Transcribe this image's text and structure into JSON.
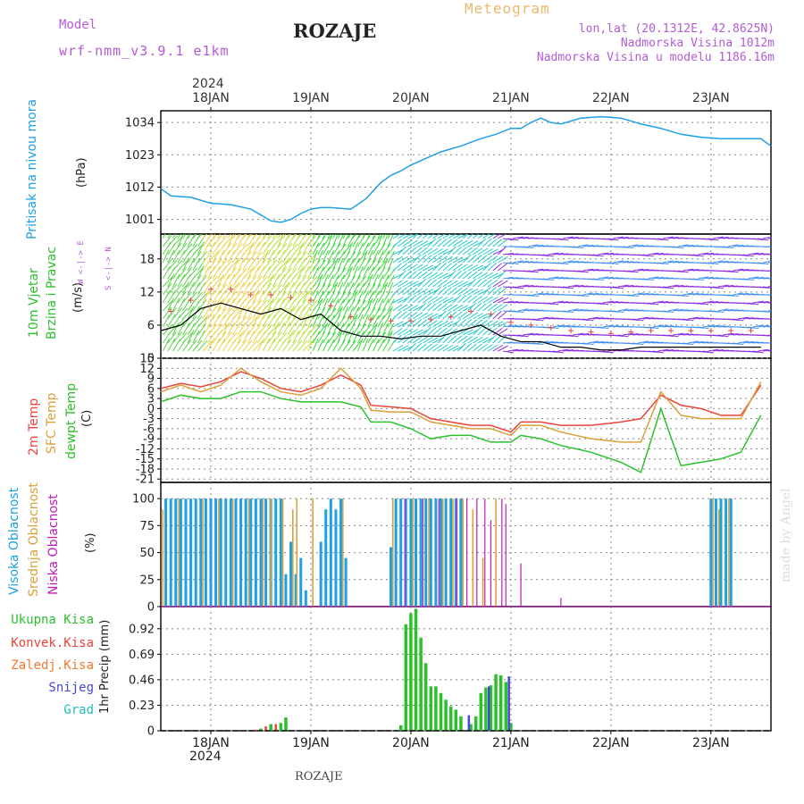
{
  "header": {
    "title": "ROZAJE",
    "meteogram": "Meteogram",
    "model_label": "Model",
    "model_name": "wrf-nmm_v3.9.1 e1km",
    "coords": "lon,lat (20.1312E, 42.8625N)",
    "elevation": "Nadmorska Visina 1012m",
    "model_elevation": "Nadmorska Visina u modelu 1186.16m"
  },
  "footer": {
    "station": "ROZAJE",
    "watermark": "made by Angel"
  },
  "colors": {
    "pressure": "#1ea0e6",
    "temp": "#e8453c",
    "sfc": "#d9a13a",
    "dew": "#2bc12b",
    "high_cloud": "#1ea0e6",
    "mid_cloud": "#d9a13a",
    "low_cloud": "#c01ab8",
    "precip_total": "#2bc12b",
    "precip_conv": "#e8453c",
    "precip_frz": "#f07830",
    "precip_snow": "#4646dc",
    "precip_grad": "#20c0c0"
  },
  "time_axis": {
    "top_year": "2024",
    "bottom_year": "2024",
    "day_labels": [
      "18JAN",
      "19JAN",
      "20JAN",
      "21JAN",
      "22JAN",
      "23JAN"
    ],
    "day_ticks": [
      0.5,
      1.5,
      2.5,
      3.5,
      4.5,
      5.5
    ],
    "range": [
      0,
      6.1
    ]
  },
  "chart_data": [
    {
      "type": "line",
      "panel": "pressure",
      "ylabel_title": "Pritisak na nivou mora",
      "ylabel_unit": "(hPa)",
      "y_ticks": [
        1001,
        1012,
        1023,
        1034
      ],
      "ylim": [
        996,
        1038
      ],
      "series": [
        {
          "x": [
            0,
            0.1,
            0.3,
            0.5,
            0.7,
            0.9,
            1.0,
            1.1,
            1.2,
            1.3,
            1.4,
            1.5,
            1.6,
            1.7,
            1.9,
            2.05,
            2.2,
            2.3,
            2.4,
            2.5,
            2.6,
            2.8,
            3.0,
            3.2,
            3.35,
            3.5,
            3.6,
            3.7,
            3.8,
            3.9,
            4.0,
            4.2,
            4.4,
            4.6,
            4.8,
            5.0,
            5.2,
            5.4,
            5.6,
            5.8,
            6.0,
            6.1
          ],
          "values": [
            1011.5,
            1009,
            1008.5,
            1006.5,
            1006,
            1004.5,
            1002.5,
            1000.5,
            1000,
            1001,
            1003,
            1004.5,
            1005,
            1005,
            1004.5,
            1008,
            1013.5,
            1016,
            1017.5,
            1019.5,
            1021,
            1024,
            1026,
            1028.5,
            1030,
            1032,
            1032,
            1034,
            1035.5,
            1034,
            1033.5,
            1035.5,
            1036,
            1035.5,
            1033.5,
            1032,
            1030,
            1029,
            1028.5,
            1028.5,
            1028.5,
            1026
          ]
        }
      ]
    },
    {
      "type": "line",
      "panel": "wind",
      "ylabel_title": "10m Vjetar",
      "ylabel_title2": "Brzina i Pravac",
      "ylabel_unit": "(m/s)",
      "compass": "W <-|-> E",
      "compass2": "S <-|-> N",
      "y_ticks": [
        0,
        6,
        12,
        18
      ],
      "ylim": [
        0,
        22.5
      ],
      "series": [
        {
          "name": "speed",
          "x": [
            0,
            0.2,
            0.4,
            0.6,
            0.8,
            1.0,
            1.2,
            1.4,
            1.6,
            1.8,
            2.0,
            2.2,
            2.4,
            2.6,
            2.8,
            3.0,
            3.2,
            3.4,
            3.6,
            3.8,
            4.0,
            4.2,
            4.4,
            4.6,
            4.8,
            5.0,
            5.2,
            5.4,
            5.6,
            5.8,
            6.0
          ],
          "values": [
            5,
            6,
            9,
            10,
            9,
            8,
            9,
            7,
            8,
            5,
            4,
            4,
            3.5,
            4,
            4,
            5,
            6,
            4,
            3,
            3,
            2,
            2,
            1.5,
            1.5,
            2,
            2,
            2,
            2,
            2,
            2,
            2
          ]
        }
      ]
    },
    {
      "type": "line",
      "panel": "temperature",
      "ylabel_title": "2m Temp",
      "ylabel_title2": "SFC Temp",
      "ylabel_title3": "dewpt Temp",
      "ylabel_unit": "(C)",
      "y_ticks": [
        -21,
        -18,
        -15,
        -12,
        -9,
        -6,
        -3,
        0,
        3,
        6,
        9,
        12,
        15
      ],
      "ylim": [
        -22,
        15
      ],
      "series": [
        {
          "name": "2m Temp",
          "x": [
            0,
            0.2,
            0.4,
            0.6,
            0.8,
            1.0,
            1.2,
            1.4,
            1.6,
            1.8,
            2.0,
            2.1,
            2.3,
            2.5,
            2.7,
            2.9,
            3.1,
            3.3,
            3.5,
            3.6,
            3.8,
            4.0,
            4.3,
            4.6,
            4.8,
            5.0,
            5.2,
            5.4,
            5.6,
            5.8,
            6.0
          ],
          "values": [
            6,
            7.5,
            6.5,
            8,
            11,
            9,
            6,
            5,
            7,
            10,
            7,
            1,
            0.5,
            0,
            -3,
            -4,
            -5,
            -5,
            -7,
            -4,
            -4,
            -5,
            -5,
            -4,
            -3,
            4,
            1,
            0,
            -2,
            -2,
            7
          ]
        },
        {
          "name": "SFC Temp",
          "x": [
            0,
            0.2,
            0.4,
            0.6,
            0.8,
            1.0,
            1.2,
            1.4,
            1.6,
            1.8,
            2.0,
            2.1,
            2.3,
            2.5,
            2.7,
            2.9,
            3.1,
            3.3,
            3.5,
            3.6,
            3.8,
            4.0,
            4.3,
            4.6,
            4.8,
            5.0,
            5.2,
            5.4,
            5.6,
            5.8,
            6.0
          ],
          "values": [
            5,
            7,
            5,
            7,
            12,
            8,
            5,
            4,
            6,
            12,
            6,
            -0.5,
            -1,
            -1,
            -4,
            -5,
            -6,
            -6,
            -8,
            -5,
            -5,
            -7,
            -9,
            -10,
            -10,
            5,
            -2,
            -3,
            -3,
            -3,
            8
          ]
        },
        {
          "name": "dewpt Temp",
          "x": [
            0,
            0.2,
            0.4,
            0.6,
            0.8,
            1.0,
            1.2,
            1.4,
            1.6,
            1.8,
            2.0,
            2.1,
            2.3,
            2.5,
            2.7,
            2.9,
            3.1,
            3.3,
            3.5,
            3.6,
            3.8,
            4.0,
            4.3,
            4.6,
            4.8,
            5.0,
            5.2,
            5.4,
            5.6,
            5.8,
            6.0
          ],
          "values": [
            2,
            4,
            3,
            3,
            5,
            5,
            3,
            2,
            2,
            2,
            0.5,
            -4,
            -4,
            -6,
            -9,
            -8,
            -8,
            -10,
            -10,
            -8,
            -9,
            -11,
            -13,
            -16,
            -19,
            0,
            -17,
            -16,
            -15,
            -13,
            -2
          ]
        }
      ]
    },
    {
      "type": "bar",
      "panel": "clouds",
      "ylabel_title": "Visoka Oblacnost",
      "ylabel_title2": "Srednja Oblacnost",
      "ylabel_title3": "Niska Oblacnost",
      "ylabel_unit": "(%)",
      "y_ticks": [
        0,
        25,
        50,
        75,
        100
      ],
      "ylim": [
        0,
        115
      ],
      "series": [
        {
          "name": "Visoka Oblacnost",
          "x": [
            0.05,
            0.1,
            0.15,
            0.2,
            0.25,
            0.3,
            0.35,
            0.4,
            0.45,
            0.5,
            0.55,
            0.6,
            0.65,
            0.7,
            0.75,
            0.8,
            0.85,
            0.9,
            0.95,
            1.0,
            1.05,
            1.1,
            1.15,
            1.2,
            1.25,
            1.3,
            1.35,
            1.4,
            1.45,
            1.6,
            1.65,
            1.7,
            1.75,
            1.8,
            1.85,
            2.3,
            2.35,
            2.4,
            2.45,
            2.5,
            2.55,
            2.6,
            2.65,
            2.7,
            2.75,
            2.8,
            2.85,
            2.9,
            2.95,
            3.0,
            5.5,
            5.55,
            5.6,
            5.65,
            5.7
          ],
          "values": [
            100,
            100,
            100,
            100,
            100,
            100,
            100,
            100,
            100,
            100,
            100,
            100,
            100,
            100,
            100,
            100,
            100,
            100,
            100,
            100,
            100,
            100,
            100,
            100,
            30,
            60,
            30,
            45,
            15,
            60,
            90,
            100,
            90,
            100,
            45,
            55,
            100,
            100,
            100,
            100,
            100,
            100,
            100,
            100,
            100,
            100,
            100,
            100,
            100,
            100,
            100,
            100,
            100,
            100,
            100
          ]
        },
        {
          "name": "Srednja Oblacnost",
          "x": [
            0.02,
            0.18,
            0.42,
            0.58,
            0.72,
            0.88,
            1.02,
            1.1,
            1.22,
            1.32,
            1.36,
            1.52,
            1.82,
            2.32,
            2.52,
            2.68,
            2.82,
            2.92,
            3.02,
            3.12,
            3.22,
            3.35,
            5.52,
            5.58,
            5.68
          ],
          "values": [
            90,
            100,
            100,
            100,
            100,
            100,
            100,
            100,
            100,
            90,
            100,
            100,
            100,
            100,
            100,
            100,
            100,
            100,
            100,
            90,
            45,
            100,
            100,
            90,
            100
          ]
        },
        {
          "name": "Niska Oblacnost",
          "x": [
            2.44,
            2.62,
            2.78,
            2.96,
            3.06,
            3.16,
            3.24,
            3.3,
            3.41,
            3.45,
            3.6,
            4.0
          ],
          "values": [
            100,
            100,
            100,
            100,
            100,
            100,
            100,
            80,
            100,
            95,
            40,
            8
          ]
        }
      ]
    },
    {
      "type": "bar",
      "panel": "precipitation",
      "ylabel_unit": "1hr Precip (mm)",
      "legend": [
        "Ukupna Kisa",
        "Konvek.Kisa",
        "Zaledj.Kisa",
        "Snijeg",
        "Grad"
      ],
      "y_ticks": [
        0,
        0.23,
        0.46,
        0.69,
        0.92
      ],
      "ylim": [
        0,
        1.12
      ],
      "series": [
        {
          "name": "Ukupna Kisa",
          "x": [
            1.0,
            1.1,
            1.2,
            1.25,
            2.4,
            2.45,
            2.5,
            2.55,
            2.6,
            2.65,
            2.7,
            2.75,
            2.8,
            2.85,
            2.9,
            2.95,
            3.0,
            3.1,
            3.15,
            3.2,
            3.25,
            3.3,
            3.35,
            3.4,
            3.45,
            3.5
          ],
          "values": [
            0.02,
            0.06,
            0.07,
            0.12,
            0.05,
            0.96,
            1.06,
            1.1,
            0.84,
            0.61,
            0.4,
            0.4,
            0.34,
            0.28,
            0.22,
            0.19,
            0.13,
            0.06,
            0.13,
            0.34,
            0.39,
            0.41,
            0.51,
            0.5,
            0.44,
            0.07
          ]
        },
        {
          "name": "Konvek.Kisa",
          "x": [
            0.95,
            1.05,
            1.15
          ],
          "values": [
            0.01,
            0.04,
            0.06
          ]
        },
        {
          "name": "Zaledj.Kisa",
          "x": [],
          "values": []
        },
        {
          "name": "Snijeg",
          "x": [
            3.08,
            3.28,
            3.48
          ],
          "values": [
            0.14,
            0.4,
            0.49
          ]
        },
        {
          "name": "Grad",
          "x": [],
          "values": []
        }
      ]
    }
  ]
}
